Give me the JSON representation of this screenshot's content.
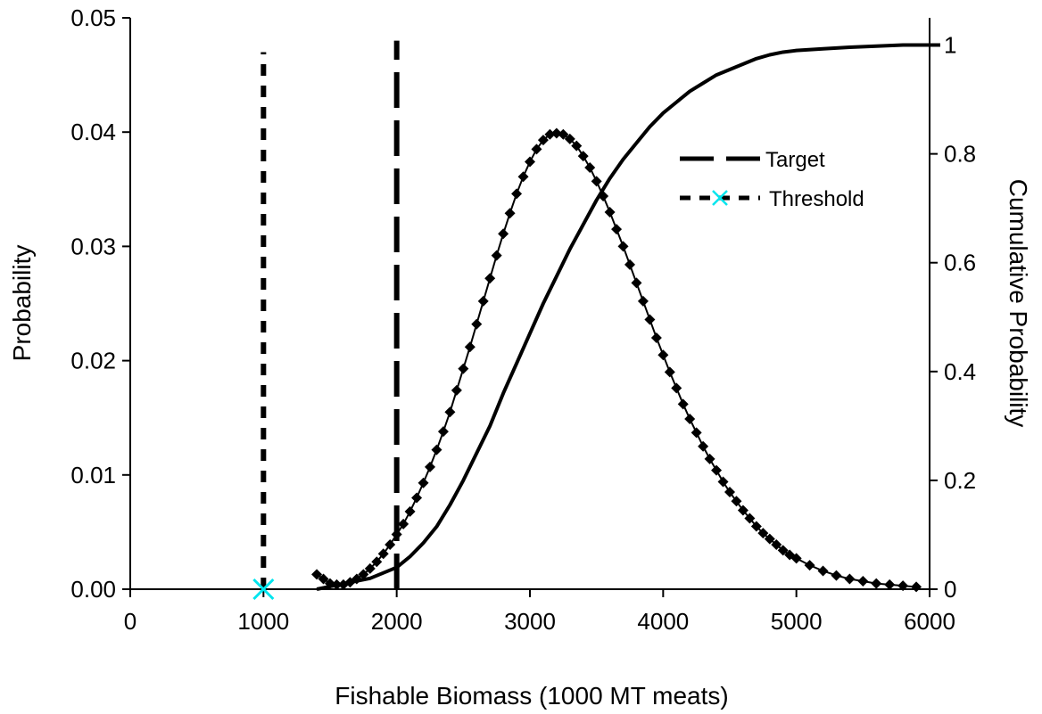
{
  "chart_data": {
    "type": "line",
    "title": "",
    "xlabel": "Fishable Biomass (1000 MT meats)",
    "ylabel": "Probability",
    "y2label": "Cumulative Probability",
    "xlim": [
      0,
      6000
    ],
    "ylim": [
      0,
      0.05
    ],
    "y2lim": [
      0,
      1.05
    ],
    "x_ticks": [
      0,
      1000,
      2000,
      3000,
      4000,
      5000,
      6000
    ],
    "y_ticks": [
      0.0,
      0.01,
      0.02,
      0.03,
      0.04,
      0.05
    ],
    "y_tick_labels": [
      "0.00",
      "0.01",
      "0.02",
      "0.03",
      "0.04",
      "0.05"
    ],
    "y2_ticks": [
      0,
      0.2,
      0.4,
      0.6,
      0.8,
      1
    ],
    "y2_tick_labels": [
      "0",
      "0.2",
      "0.4",
      "0.6",
      "0.8",
      "1"
    ],
    "grid": false,
    "legend_position": "right",
    "series": [
      {
        "name": "",
        "axis": "left",
        "style": "line-with-diamond-markers",
        "x": [
          1400,
          1450,
          1500,
          1550,
          1600,
          1650,
          1700,
          1750,
          1800,
          1850,
          1900,
          1950,
          2000,
          2050,
          2100,
          2150,
          2200,
          2250,
          2300,
          2350,
          2400,
          2450,
          2500,
          2550,
          2600,
          2650,
          2700,
          2750,
          2800,
          2850,
          2900,
          2950,
          3000,
          3050,
          3100,
          3150,
          3200,
          3250,
          3300,
          3350,
          3400,
          3450,
          3500,
          3550,
          3600,
          3650,
          3700,
          3750,
          3800,
          3850,
          3900,
          3950,
          4000,
          4050,
          4100,
          4150,
          4200,
          4250,
          4300,
          4350,
          4400,
          4450,
          4500,
          4550,
          4600,
          4650,
          4700,
          4750,
          4800,
          4850,
          4900,
          4950,
          5000,
          5100,
          5200,
          5300,
          5400,
          5500,
          5600,
          5700,
          5800,
          5900
        ],
        "values": [
          0.0013,
          0.0009,
          0.0005,
          0.0004,
          0.0004,
          0.0006,
          0.0009,
          0.0013,
          0.0018,
          0.0024,
          0.0031,
          0.0039,
          0.0048,
          0.0057,
          0.0068,
          0.008,
          0.0093,
          0.0107,
          0.0122,
          0.0138,
          0.0155,
          0.0174,
          0.0193,
          0.0212,
          0.0232,
          0.0252,
          0.0272,
          0.0292,
          0.0311,
          0.0329,
          0.0346,
          0.0361,
          0.0374,
          0.0385,
          0.0393,
          0.0398,
          0.0399,
          0.0398,
          0.0394,
          0.0388,
          0.0379,
          0.0369,
          0.0357,
          0.0344,
          0.033,
          0.0315,
          0.03,
          0.0284,
          0.0268,
          0.0252,
          0.0236,
          0.022,
          0.0205,
          0.019,
          0.0176,
          0.0162,
          0.0149,
          0.0137,
          0.0125,
          0.0114,
          0.0104,
          0.0094,
          0.0085,
          0.0077,
          0.0069,
          0.0062,
          0.0055,
          0.0049,
          0.0044,
          0.0039,
          0.0034,
          0.003,
          0.0027,
          0.0021,
          0.0016,
          0.0012,
          0.0009,
          0.0007,
          0.0005,
          0.0004,
          0.0003,
          0.0002
        ]
      },
      {
        "name": "",
        "axis": "right",
        "style": "solid-line",
        "x": [
          1400,
          1500,
          1600,
          1700,
          1800,
          1900,
          2000,
          2100,
          2200,
          2300,
          2400,
          2500,
          2600,
          2700,
          2800,
          2900,
          3000,
          3100,
          3200,
          3300,
          3400,
          3500,
          3600,
          3700,
          3800,
          3900,
          4000,
          4100,
          4200,
          4300,
          4400,
          4500,
          4600,
          4700,
          4800,
          4900,
          5000,
          5200,
          5400,
          5600,
          5800,
          6000,
          6080
        ],
        "values": [
          0.0,
          0.005,
          0.01,
          0.015,
          0.02,
          0.03,
          0.04,
          0.06,
          0.085,
          0.115,
          0.155,
          0.2,
          0.25,
          0.3,
          0.36,
          0.415,
          0.47,
          0.525,
          0.575,
          0.625,
          0.67,
          0.715,
          0.755,
          0.79,
          0.82,
          0.85,
          0.875,
          0.895,
          0.915,
          0.93,
          0.945,
          0.955,
          0.965,
          0.975,
          0.982,
          0.987,
          0.99,
          0.993,
          0.996,
          0.998,
          1.0,
          1.0,
          1.0
        ]
      },
      {
        "name": "Target",
        "axis": "left",
        "style": "long-dash-vertical",
        "x": [
          2000,
          2000
        ],
        "values": [
          0,
          0.048
        ]
      },
      {
        "name": "Threshold",
        "axis": "left",
        "style": "short-dash-vertical",
        "x": [
          1000,
          1000
        ],
        "values": [
          0,
          0.047
        ]
      }
    ],
    "threshold_marker": {
      "x": 1000,
      "y": 0,
      "color": "#00e5ee",
      "symbol": "x"
    }
  }
}
